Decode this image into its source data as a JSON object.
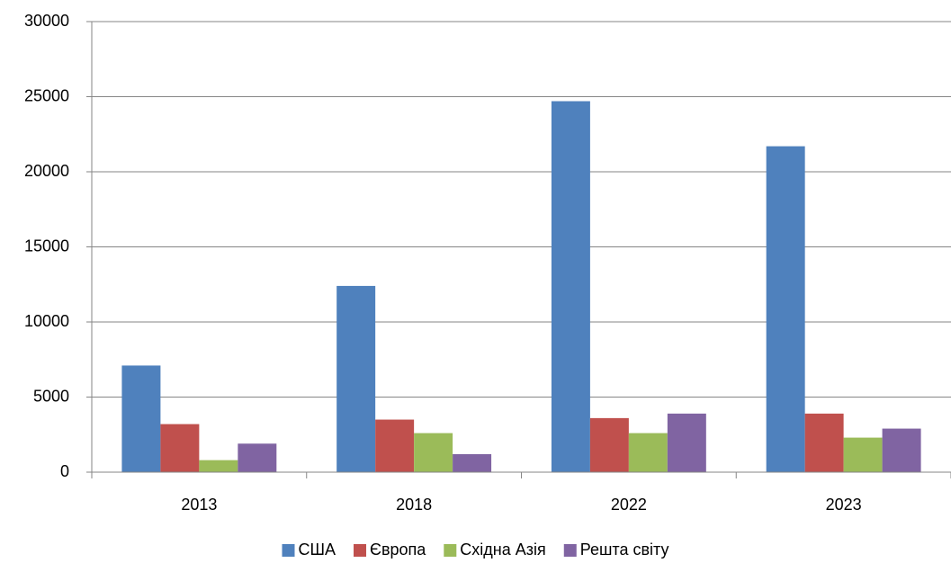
{
  "chart_data": {
    "type": "bar",
    "categories": [
      "2013",
      "2018",
      "2022",
      "2023"
    ],
    "series": [
      {
        "name": "США",
        "color": "#4f81bd",
        "values": [
          7100,
          12400,
          24700,
          21700
        ]
      },
      {
        "name": "Європа",
        "color": "#c0504d",
        "values": [
          3200,
          3500,
          3600,
          3900
        ]
      },
      {
        "name": "Східна Азія",
        "color": "#9bbb59",
        "values": [
          800,
          2600,
          2600,
          2300
        ]
      },
      {
        "name": "Решта світу",
        "color": "#8064a2",
        "values": [
          1900,
          1200,
          3900,
          2900
        ]
      }
    ],
    "ylim": [
      0,
      30000
    ],
    "yticks": [
      0,
      5000,
      10000,
      15000,
      20000,
      25000,
      30000
    ],
    "grid": true,
    "legend": "bottom"
  }
}
